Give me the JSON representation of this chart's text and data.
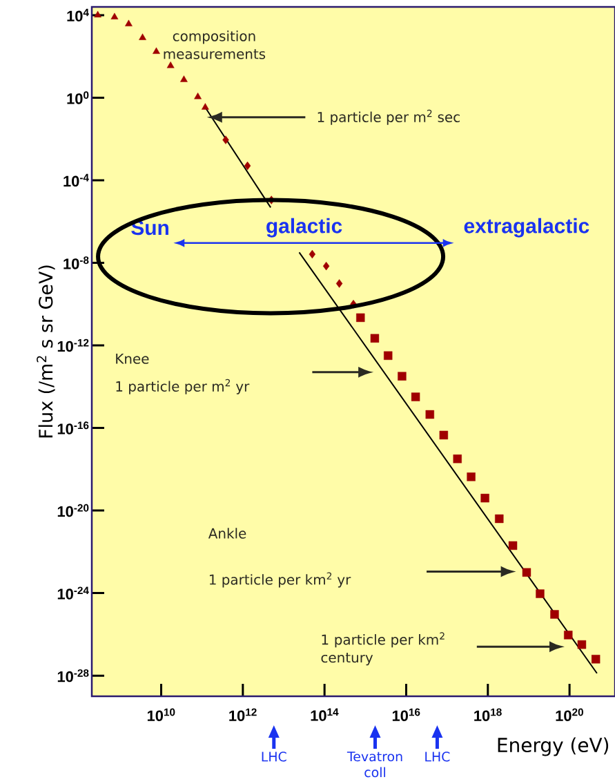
{
  "chart_data": {
    "type": "scatter",
    "log": "xy",
    "xlabel": "Energy (eV)",
    "ylabel": "Flux  (/m$^{2}$ s sr GeV)",
    "xlim": [
      200000000.0,
      1.3e+21
    ],
    "ylim": [
      1e-29,
      25000.0
    ],
    "xticks": [
      {
        "value": 10000000000.0,
        "label": "10$^{10}$"
      },
      {
        "value": 1000000000000.0,
        "label": "10$^{12}$"
      },
      {
        "value": 100000000000000.0,
        "label": "10$^{14}$"
      },
      {
        "value": 1e+16,
        "label": "10$^{16}$"
      },
      {
        "value": 1e+18,
        "label": "10$^{18}$"
      },
      {
        "value": 1e+20,
        "label": "10$^{20}$"
      }
    ],
    "yticks": [
      {
        "value": 10000.0,
        "label": "10$^{4}$"
      },
      {
        "value": 1.0,
        "label": "10$^{0}$"
      },
      {
        "value": 0.0001,
        "label": "10$^{-4}$"
      },
      {
        "value": 1e-08,
        "label": "10$^{-8}$"
      },
      {
        "value": 1e-12,
        "label": "10$^{-12}$"
      },
      {
        "value": 1e-16,
        "label": "10$^{-16}$"
      },
      {
        "value": 1e-20,
        "label": "10$^{-20}$"
      },
      {
        "value": 1e-24,
        "label": "10$^{-24}$"
      },
      {
        "value": 1e-28,
        "label": "10$^{-28}$"
      }
    ],
    "series": [
      {
        "marker": "triangle",
        "color": "#a00000",
        "x": [
          280000000.0,
          720000000.0,
          1600000000.0,
          3500000000.0,
          7600000000.0,
          17000000000.0,
          36000000000.0,
          79000000000.0,
          120000000000.0
        ],
        "values": [
          10000.0,
          8000.0,
          3700.0,
          800.0,
          170.0,
          35,
          7.4,
          1.1,
          0.34
        ]
      },
      {
        "marker": "diamond",
        "color": "#a00000",
        "x": [
          380000000000.0,
          1300000000000.0,
          5000000000000.0,
          50000000000000.0,
          110000000000000.0,
          230000000000000.0,
          510000000000000.0
        ],
        "values": [
          0.009,
          0.0005,
          1.1e-05,
          2.6e-08,
          7e-09,
          1e-09,
          1e-10
        ]
      },
      {
        "marker": "square",
        "color": "#a00000",
        "x": [
          760000000000000.0,
          1700000000000000.0,
          3600000000000000.0,
          7900000000000000.0,
          1.7e+16,
          3.8e+16,
          8.3e+16,
          1.8e+17,
          3.9e+17,
          8.5e+17,
          1.9e+18,
          4.1e+18,
          8.9e+18,
          1.9e+19,
          4.3e+19,
          9.3e+19,
          2e+20,
          4.4e+20
        ],
        "values": [
          2.2e-11,
          2.2e-12,
          3.2e-13,
          3.2e-14,
          3.2e-15,
          4.5e-16,
          4.5e-17,
          3.2e-18,
          4.3e-19,
          4e-20,
          4e-21,
          2e-22,
          1e-23,
          9.3e-25,
          9.3e-26,
          9.3e-27,
          3.2e-27,
          6.3e-28
        ]
      },
      {
        "type": "line",
        "color": "#000000",
        "x": [
          120000000000.0,
          4800000000000.0,
          10000000000000.0,
          24000000000000.0,
          4.7e+20
        ],
        "values": [
          0.34,
          4.8e-06,
          null,
          3.2e-08,
          1.3e-28
        ]
      }
    ],
    "annotations": [
      "composition measurements",
      "1 particle per m$^{2}$ sec",
      "Knee",
      "1 particle per m$^{2}$ yr",
      "Ankle",
      "1 particle per km$^{2}$ yr",
      "1 particle per km$^{2}$ century",
      "Sun",
      "galactic",
      "extragalactic",
      "LHC",
      "Tevatron coll",
      "LHC"
    ]
  }
}
